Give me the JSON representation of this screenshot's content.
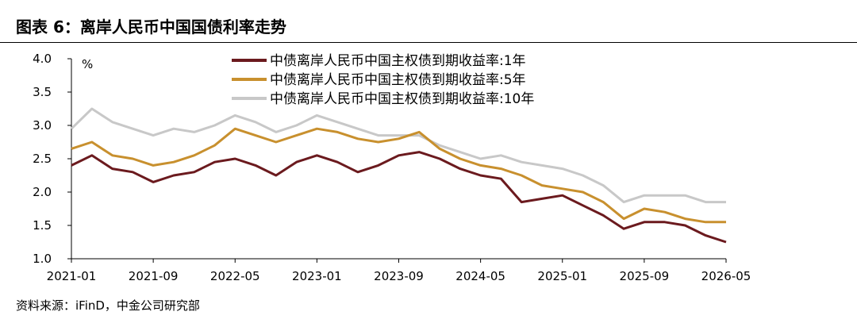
{
  "header": {
    "title": "图表 6：离岸人民币中国国债利率走势"
  },
  "footer": {
    "source": "资料来源：iFinD，中金公司研究部"
  },
  "chart_data": {
    "type": "line",
    "ylabel": "%",
    "ylim": [
      1.0,
      4.0
    ],
    "yticks": [
      "4.0",
      "3.5",
      "3.0",
      "2.5",
      "2.0",
      "1.5",
      "1.0"
    ],
    "x_start": "2021-01",
    "x_end": "2026-05",
    "xticks": [
      "2021-01",
      "2021-09",
      "2022-05",
      "2023-01",
      "2023-09",
      "2024-05",
      "2025-01",
      "2025-09",
      "2026-05"
    ],
    "x": [
      "2021-01",
      "2021-03",
      "2021-05",
      "2021-07",
      "2021-09",
      "2021-11",
      "2022-01",
      "2022-03",
      "2022-05",
      "2022-07",
      "2022-09",
      "2022-11",
      "2023-01",
      "2023-03",
      "2023-05",
      "2023-07",
      "2023-09",
      "2023-11",
      "2024-01",
      "2024-03",
      "2024-05",
      "2024-07",
      "2024-09",
      "2024-11",
      "2025-01",
      "2025-03",
      "2025-05",
      "2025-07",
      "2025-09",
      "2025-11",
      "2026-01",
      "2026-03",
      "2026-05"
    ],
    "series": [
      {
        "name": "中债离岸人民币中国主权债到期收益率:1年",
        "color": "#6b1a1e",
        "values": [
          2.4,
          2.55,
          2.35,
          2.3,
          2.15,
          2.25,
          2.3,
          2.45,
          2.5,
          2.4,
          2.25,
          2.45,
          2.55,
          2.45,
          2.3,
          2.4,
          2.55,
          2.6,
          2.5,
          2.35,
          2.25,
          2.2,
          1.85,
          1.9,
          1.95,
          1.8,
          1.65,
          1.45,
          1.55,
          1.55,
          1.5,
          1.35,
          1.25
        ]
      },
      {
        "name": "中债离岸人民币中国主权债到期收益率:5年",
        "color": "#c8902e",
        "values": [
          2.65,
          2.75,
          2.55,
          2.5,
          2.4,
          2.45,
          2.55,
          2.7,
          2.95,
          2.85,
          2.75,
          2.85,
          2.95,
          2.9,
          2.8,
          2.75,
          2.8,
          2.9,
          2.65,
          2.5,
          2.4,
          2.35,
          2.25,
          2.1,
          2.05,
          2.0,
          1.85,
          1.6,
          1.75,
          1.7,
          1.6,
          1.55,
          1.55
        ]
      },
      {
        "name": "中债离岸人民币中国主权债到期收益率:10年",
        "color": "#c8c8c8",
        "values": [
          2.95,
          3.25,
          3.05,
          2.95,
          2.85,
          2.95,
          2.9,
          3.0,
          3.15,
          3.05,
          2.9,
          3.0,
          3.15,
          3.05,
          2.95,
          2.85,
          2.85,
          2.85,
          2.7,
          2.6,
          2.5,
          2.55,
          2.45,
          2.4,
          2.35,
          2.25,
          2.1,
          1.85,
          1.95,
          1.95,
          1.95,
          1.85,
          1.85
        ]
      }
    ],
    "legend_position": "top-center",
    "grid": false
  }
}
